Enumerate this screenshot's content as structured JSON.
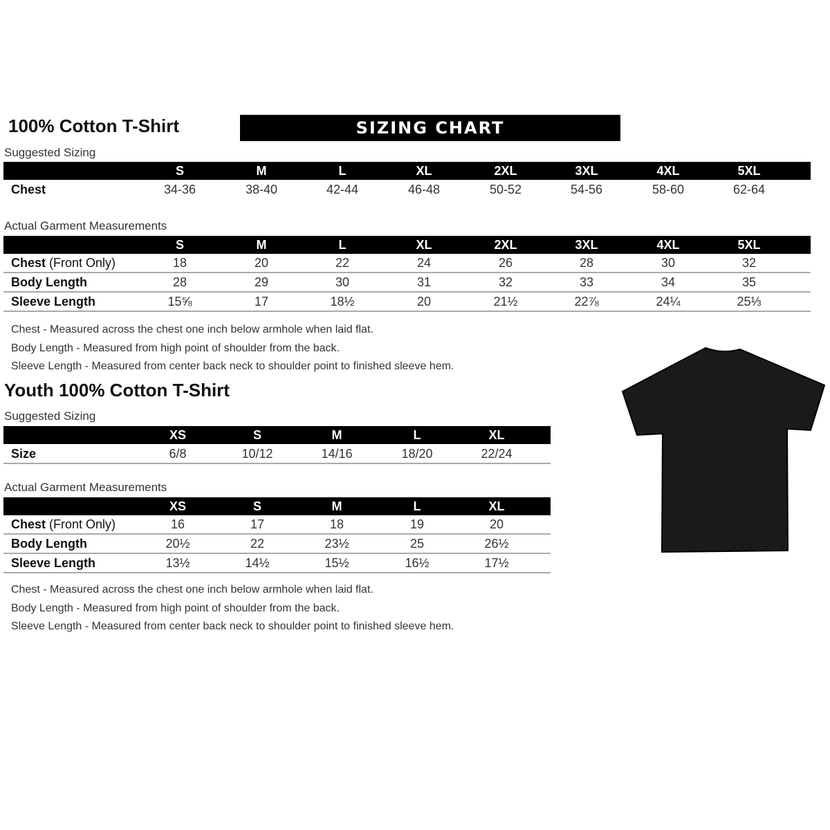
{
  "adult": {
    "title": "100% Cotton T-Shirt",
    "banner": "SIZING CHART",
    "suggested_label": "Suggested Sizing",
    "sizes": [
      "S",
      "M",
      "L",
      "XL",
      "2XL",
      "3XL",
      "4XL",
      "5XL"
    ],
    "suggested_rows": [
      {
        "label": "Chest",
        "label_suffix": "",
        "values": [
          "34-36",
          "38-40",
          "42-44",
          "46-48",
          "50-52",
          "54-56",
          "58-60",
          "62-64"
        ]
      }
    ],
    "actual_label": "Actual Garment Measurements",
    "actual_rows": [
      {
        "label": "Chest",
        "label_suffix": " (Front Only)",
        "values": [
          "18",
          "20",
          "22",
          "24",
          "26",
          "28",
          "30",
          "32"
        ]
      },
      {
        "label": "Body Length",
        "label_suffix": "",
        "values": [
          "28",
          "29",
          "30",
          "31",
          "32",
          "33",
          "34",
          "35"
        ]
      },
      {
        "label": "Sleeve Length",
        "label_suffix": "",
        "values": [
          "15⅝",
          "17",
          "18½",
          "20",
          "21½",
          "22⅞",
          "24¼",
          "25⅓"
        ]
      }
    ],
    "notes": [
      "Chest - Measured across the chest one inch below armhole when laid flat.",
      "Body Length - Measured from high point of shoulder from the back.",
      "Sleeve Length - Measured from center back neck to shoulder point to finished sleeve hem."
    ]
  },
  "youth": {
    "title": "Youth 100% Cotton T-Shirt",
    "suggested_label": "Suggested Sizing",
    "sizes": [
      "XS",
      "S",
      "M",
      "L",
      "XL"
    ],
    "suggested_rows": [
      {
        "label": "Size",
        "label_suffix": "",
        "values": [
          "6/8",
          "10/12",
          "14/16",
          "18/20",
          "22/24"
        ]
      }
    ],
    "actual_label": "Actual Garment Measurements",
    "actual_rows": [
      {
        "label": "Chest",
        "label_suffix": " (Front Only)",
        "values": [
          "16",
          "17",
          "18",
          "19",
          "20"
        ]
      },
      {
        "label": "Body Length",
        "label_suffix": "",
        "values": [
          "20½",
          "22",
          "23½",
          "25",
          "26½"
        ]
      },
      {
        "label": "Sleeve Length",
        "label_suffix": "",
        "values": [
          "13½",
          "14½",
          "15½",
          "16½",
          "17½"
        ]
      }
    ],
    "notes": [
      "Chest - Measured across the chest one inch below armhole when laid flat.",
      "Body Length - Measured from high point of shoulder from the back.",
      "Sleeve Length - Measured from center back neck to shoulder point to finished sleeve hem."
    ]
  },
  "image": {
    "icon": "black-tshirt-icon",
    "color": "#1a1a1a"
  }
}
